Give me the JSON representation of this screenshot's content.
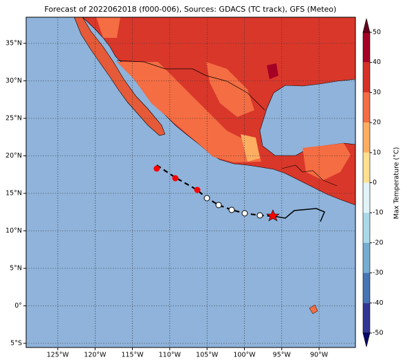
{
  "title": "Forecast of 2022062018 (f000-006), Sources: GDACS (TC track), GFS (Meteo)",
  "latitude_labels": [
    "35°N",
    "30°N",
    "25°N",
    "20°N",
    "15°N",
    "10°N",
    "5°N",
    "0°",
    "5°S"
  ],
  "longitude_labels": [
    "125°W",
    "120°W",
    "115°W",
    "110°W",
    "105°W",
    "100°W",
    "95°W",
    "90°W"
  ],
  "colorbar": {
    "label": "Max Temperature (°C)",
    "ticks": [
      50,
      40,
      30,
      20,
      10,
      0,
      -10,
      -20,
      -30,
      -40,
      -50
    ],
    "colors": [
      "#a50026",
      "#d73027",
      "#f46d43",
      "#fdae61",
      "#fee090",
      "#e0f3f8",
      "#abd9e9",
      "#74add1",
      "#4575b4",
      "#313695"
    ]
  }
}
